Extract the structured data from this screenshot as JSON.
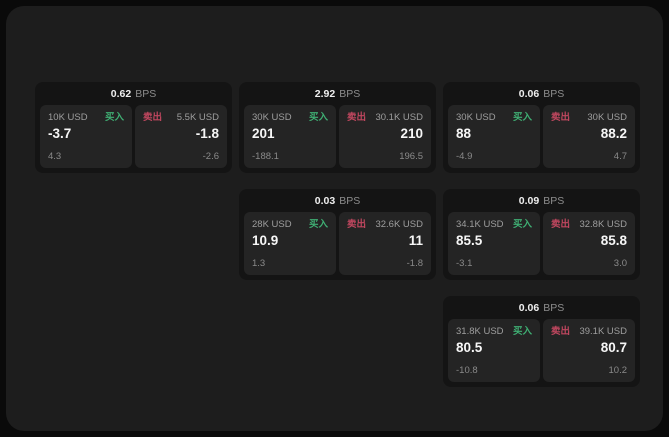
{
  "labels": {
    "bps_unit": "BPS",
    "buy": "买入",
    "sell": "卖出"
  },
  "colors": {
    "buy": "#3fae73",
    "sell": "#c0475f",
    "panel_bg": "#1d1d1d",
    "card_bg": "#141414",
    "subpanel_bg": "#242424"
  },
  "cards": [
    {
      "bps": "0.62",
      "buy": {
        "amount": "10K USD",
        "price": "-3.7",
        "sub": "4.3"
      },
      "sell": {
        "amount": "5.5K USD",
        "price": "-1.8",
        "sub": "-2.6"
      }
    },
    {
      "bps": "2.92",
      "buy": {
        "amount": "30K USD",
        "price": "201",
        "sub": "-188.1"
      },
      "sell": {
        "amount": "30.1K USD",
        "price": "210",
        "sub": "196.5"
      }
    },
    {
      "bps": "0.06",
      "buy": {
        "amount": "30K USD",
        "price": "88",
        "sub": "-4.9"
      },
      "sell": {
        "amount": "30K USD",
        "price": "88.2",
        "sub": "4.7"
      }
    },
    {
      "bps": "0.03",
      "buy": {
        "amount": "28K USD",
        "price": "10.9",
        "sub": "1.3"
      },
      "sell": {
        "amount": "32.6K USD",
        "price": "11",
        "sub": "-1.8"
      }
    },
    {
      "bps": "0.09",
      "buy": {
        "amount": "34.1K USD",
        "price": "85.5",
        "sub": "-3.1"
      },
      "sell": {
        "amount": "32.8K USD",
        "price": "85.8",
        "sub": "3.0"
      }
    },
    {
      "bps": "0.06",
      "buy": {
        "amount": "31.8K USD",
        "price": "80.5",
        "sub": "-10.8"
      },
      "sell": {
        "amount": "39.1K USD",
        "price": "80.7",
        "sub": "10.2"
      }
    }
  ]
}
